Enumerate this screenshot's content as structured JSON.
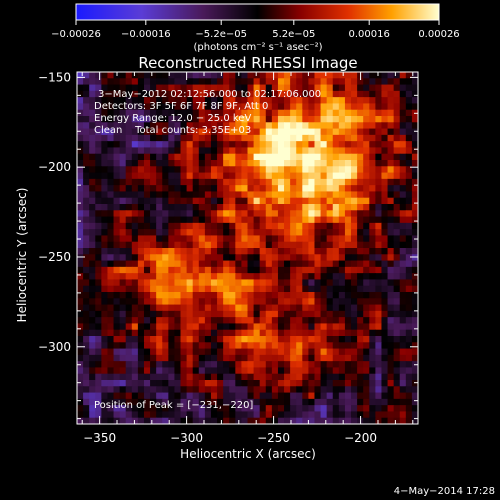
{
  "chart_data": {
    "type": "heatmap",
    "title": "Reconstructed RHESSI Image",
    "xlabel": "Heliocentric X (arcsec)",
    "ylabel": "Heliocentric Y (arcsec)",
    "xlim": [
      -363,
      -167
    ],
    "ylim": [
      -343,
      -147
    ],
    "x_ticks": [
      -350,
      -300,
      -250,
      -200
    ],
    "x_tick_labels": [
      "−350",
      "−300",
      "−250",
      "−200"
    ],
    "y_ticks": [
      -150,
      -200,
      -250,
      -300
    ],
    "y_tick_labels": [
      "−150",
      "−200",
      "−250",
      "−300"
    ],
    "colorbar": {
      "range": [
        -0.00026,
        0.00026
      ],
      "ticks": [
        -0.00026,
        -0.00016,
        -5.2e-05,
        5.2e-05,
        0.00016,
        0.00026
      ],
      "tick_labels": [
        "−0.00026",
        "−0.00016",
        "−5.2e−05",
        "5.2e−05",
        "0.00016",
        "0.00026"
      ],
      "unit_label": "(photons cm⁻² s⁻¹ asec⁻²)"
    },
    "annotations": [
      "3−May−2012 02:12:56.000 to 02:17:06.000",
      "Detectors: 3F 5F 6F 7F 8F 9F, Att 0",
      "Energy Range: 12.0 − 25.0 keV",
      "Clean    Total counts: 3.35E+03"
    ],
    "peak_label": "Position of Peak = [−231,−220]",
    "peak": [
      -231,
      -220
    ]
  },
  "footer": {
    "date": "4−May−2014 17:28"
  }
}
